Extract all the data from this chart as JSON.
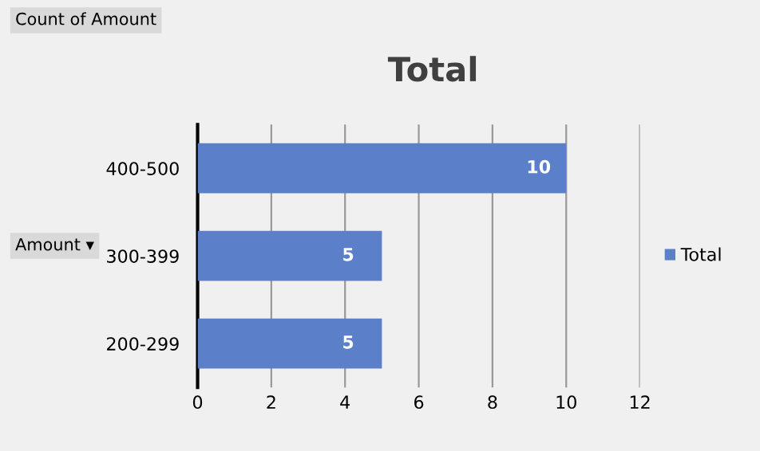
{
  "chart_data": {
    "type": "bar",
    "orientation": "horizontal",
    "title": "Total",
    "categories": [
      "400-500",
      "300-399",
      "200-299"
    ],
    "series": [
      {
        "name": "Total",
        "color": "#5b7fc8",
        "values": [
          10,
          5,
          5
        ]
      }
    ],
    "xlim": [
      0,
      12
    ],
    "xticks": [
      0,
      2,
      4,
      6,
      8,
      10,
      12
    ],
    "grid": "x",
    "legend": "right",
    "data_labels": true,
    "annotations": [
      "Count of Amount",
      "Amount ▾"
    ]
  }
}
